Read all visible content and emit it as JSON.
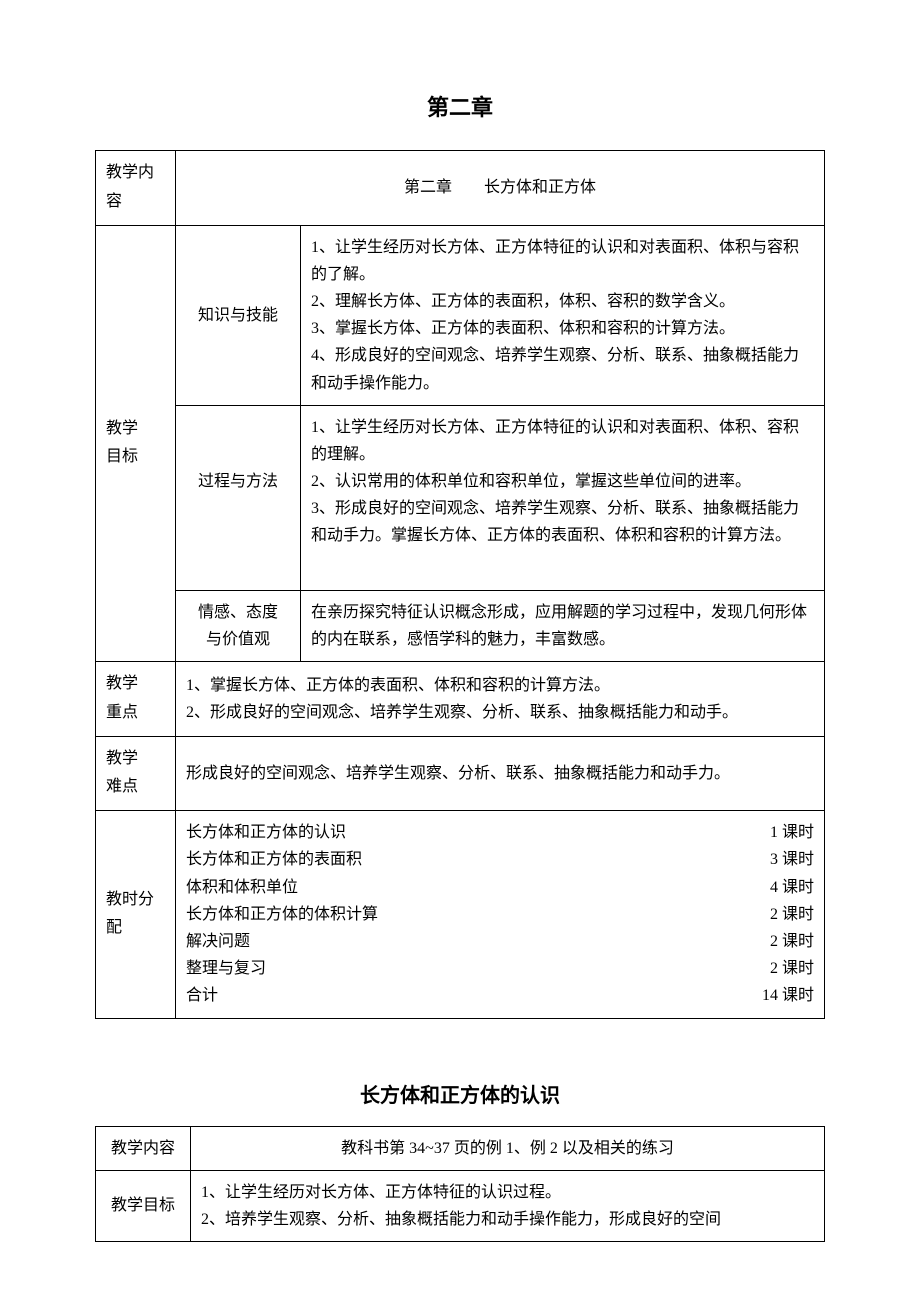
{
  "page": {
    "background_color": "#ffffff",
    "text_color": "#000000",
    "border_color": "#000000",
    "font_family": "SimSun",
    "body_fontsize": 16,
    "title_fontsize": 22
  },
  "chapter_title": "第二章",
  "table1": {
    "rows": {
      "content": {
        "label": "教学内\n容",
        "value": "第二章　　长方体和正方体"
      },
      "goals": {
        "label": "教学\n目标",
        "subrows": {
          "knowledge": {
            "label": "知识与技能",
            "text": "1、让学生经历对长方体、正方体特征的认识和对表面积、体积与容积的了解。\n2、理解长方体、正方体的表面积，体积、容积的数学含义。\n3、掌握长方体、正方体的表面积、体积和容积的计算方法。\n4、形成良好的空间观念、培养学生观察、分析、联系、抽象概括能力和动手操作能力。"
          },
          "process": {
            "label": "过程与方法",
            "text": "1、让学生经历对长方体、正方体特征的认识和对表面积、体积、容积的理解。\n2、认识常用的体积单位和容积单位，掌握这些单位间的进率。\n3、形成良好的空间观念、培养学生观察、分析、联系、抽象概括能力和动手力。掌握长方体、正方体的表面积、体积和容积的计算方法。"
          },
          "emotion": {
            "label": "情感、态度\n与价值观",
            "text": "在亲历探究特征认识概念形成，应用解题的学习过程中，发现几何形体的内在联系，感悟学科的魅力，丰富数感。"
          }
        }
      },
      "keypoints": {
        "label": "教学\n重点",
        "text": "1、掌握长方体、正方体的表面积、体积和容积的计算方法。\n2、形成良好的空间观念、培养学生观察、分析、联系、抽象概括能力和动手。"
      },
      "difficulty": {
        "label": "教学\n难点",
        "text": "形成良好的空间观念、培养学生观察、分析、联系、抽象概括能力和动手力。"
      },
      "hours": {
        "label": "教时分\n配",
        "items": [
          {
            "topic": "长方体和正方体的认识",
            "amount": "1 课时"
          },
          {
            "topic": "长方体和正方体的表面积",
            "amount": "3 课时"
          },
          {
            "topic": "体积和体积单位",
            "amount": "4 课时"
          },
          {
            "topic": "长方体和正方体的体积计算",
            "amount": "2 课时"
          },
          {
            "topic": "解决问题",
            "amount": "2 课时"
          },
          {
            "topic": "整理与复习",
            "amount": "2 课时"
          },
          {
            "topic": "合计",
            "amount": "14 课时"
          }
        ]
      }
    }
  },
  "section_title": "长方体和正方体的认识",
  "table2": {
    "rows": {
      "content": {
        "label": "教学内容",
        "value": "教科书第 34~37 页的例 1、例 2 以及相关的练习"
      },
      "goals": {
        "label": "教学目标",
        "text": "1、让学生经历对长方体、正方体特征的认识过程。\n2、培养学生观察、分析、抽象概括能力和动手操作能力，形成良好的空间"
      }
    }
  }
}
